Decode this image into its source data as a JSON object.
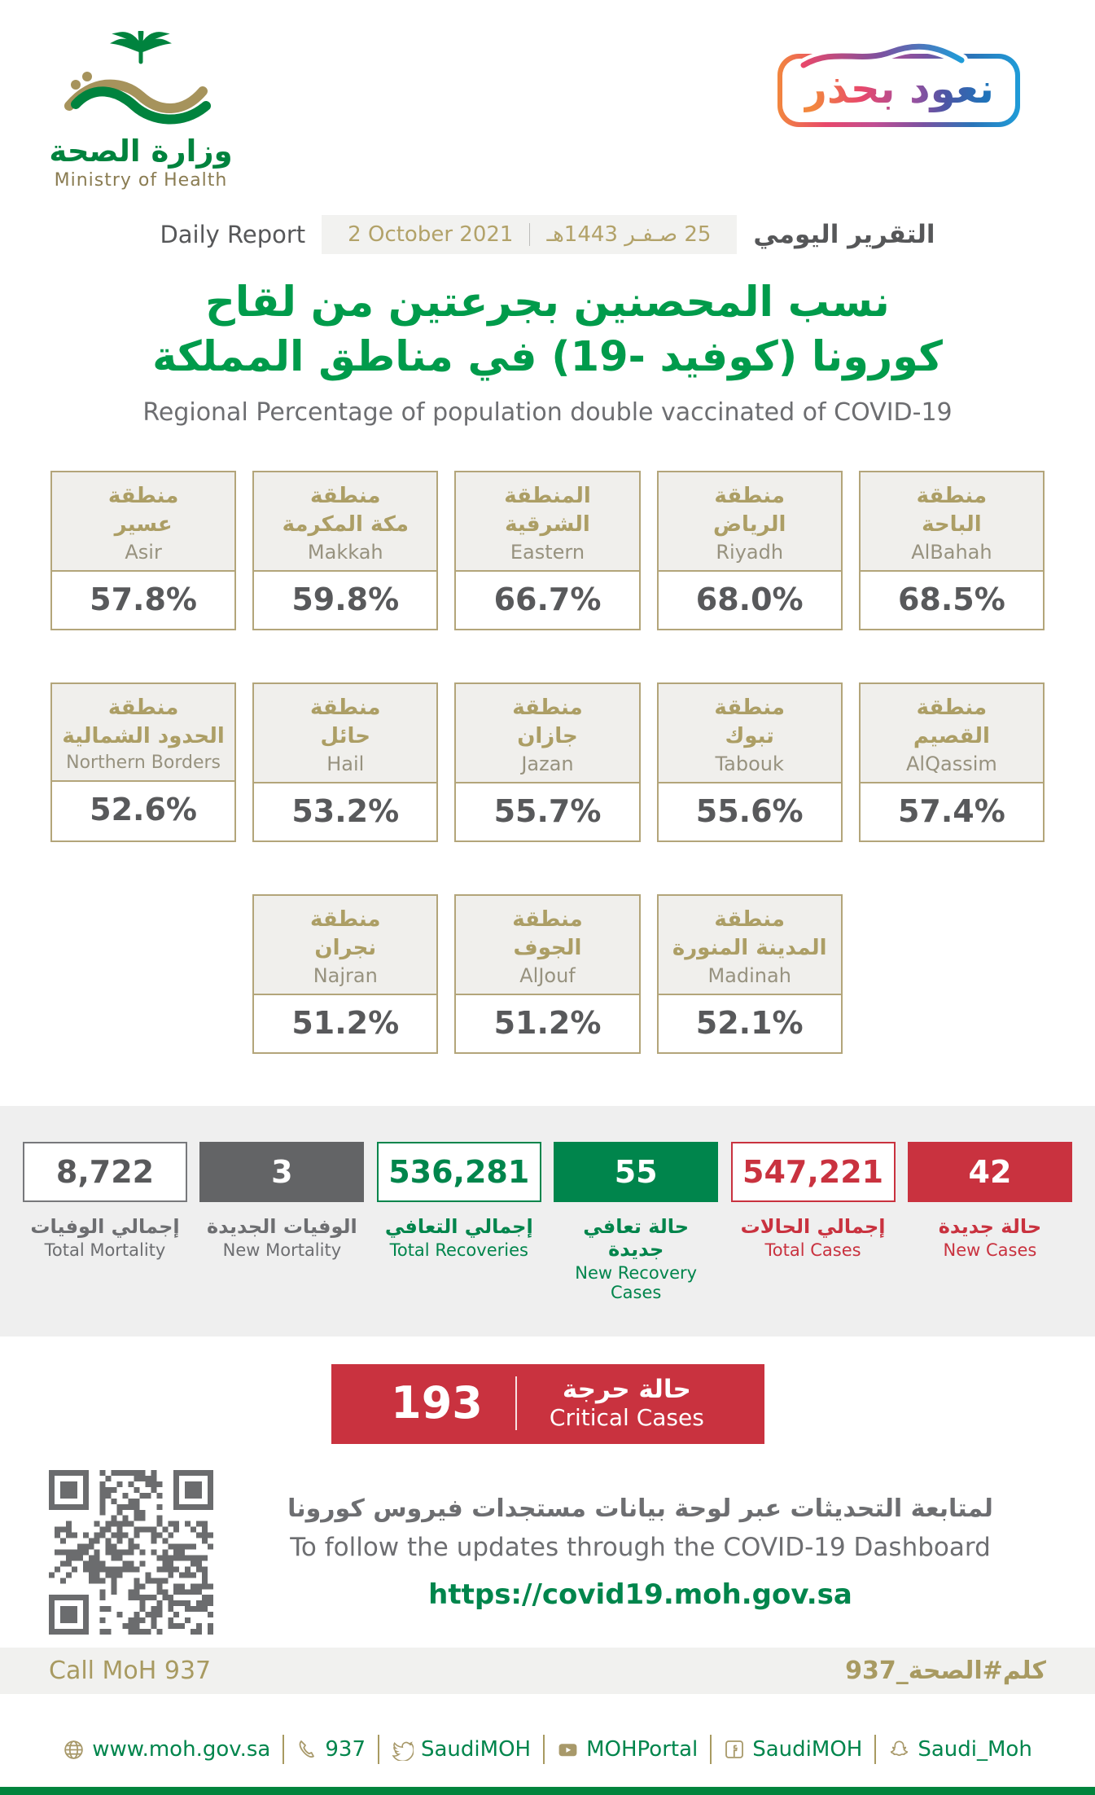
{
  "header": {
    "logo": {
      "arabic": "وزارة الصحة",
      "english": "Ministry of Health"
    },
    "badge": {
      "text": "نعود بحذر"
    },
    "report": {
      "label_en": "Daily Report",
      "date_gregorian": "2 October 2021",
      "date_hijri": "25 صـفـر 1443هـ",
      "label_ar": "التقرير اليومي"
    }
  },
  "title": {
    "ar_line1": "نسب المحصنين بجرعتين من لقاح",
    "ar_line2": "كورونا (كوفيد -19) في مناطق المملكة",
    "en": "Regional Percentage of population double vaccinated of COVID-19"
  },
  "regions": {
    "row1": [
      {
        "ar": "منطقة\nعسير",
        "en": "Asir",
        "value": "57.8%"
      },
      {
        "ar": "منطقة\nمكة المكرمة",
        "en": "Makkah",
        "value": "59.8%"
      },
      {
        "ar": "المنطقة\nالشرقية",
        "en": "Eastern",
        "value": "66.7%"
      },
      {
        "ar": "منطقة\nالرياض",
        "en": "Riyadh",
        "value": "68.0%"
      },
      {
        "ar": "منطقة\nالباحة",
        "en": "AlBahah",
        "value": "68.5%"
      }
    ],
    "row2": [
      {
        "ar": "منطقة\nالحدود الشمالية",
        "en": "Northern Borders",
        "value": "52.6%"
      },
      {
        "ar": "منطقة\nحائل",
        "en": "Hail",
        "value": "53.2%"
      },
      {
        "ar": "منطقة\nجازان",
        "en": "Jazan",
        "value": "55.7%"
      },
      {
        "ar": "منطقة\nتبوك",
        "en": "Tabouk",
        "value": "55.6%"
      },
      {
        "ar": "منطقة\nالقصيم",
        "en": "AlQassim",
        "value": "57.4%"
      }
    ],
    "row3": [
      {
        "ar": "منطقة\nنجران",
        "en": "Najran",
        "value": "51.2%"
      },
      {
        "ar": "منطقة\nالجوف",
        "en": "AlJouf",
        "value": "51.2%"
      },
      {
        "ar": "منطقة\nالمدينة المنورة",
        "en": "Madinah",
        "value": "52.1%"
      }
    ]
  },
  "stats": [
    {
      "value": "8,722",
      "ar": "إجمالي الوفيات",
      "en": "Total Mortality"
    },
    {
      "value": "3",
      "ar": "الوفيات الجديدة",
      "en": "New Mortality"
    },
    {
      "value": "536,281",
      "ar": "إجمالي التعافي",
      "en": "Total Recoveries"
    },
    {
      "value": "55",
      "ar": "حالة تعافي جديدة",
      "en": "New Recovery Cases"
    },
    {
      "value": "547,221",
      "ar": "إجمالي الحالات",
      "en": "Total Cases"
    },
    {
      "value": "42",
      "ar": "حالة جديدة",
      "en": "New Cases"
    }
  ],
  "critical": {
    "value": "193",
    "ar": "حالة حرجة",
    "en": "Critical Cases"
  },
  "dashboard": {
    "ar": "لمتابعة التحديثات عبر لوحة بيانات مستجدات فيروس كورونا",
    "en": "To follow the updates through the COVID-19 Dashboard",
    "url": "https://covid19.moh.gov.sa"
  },
  "callband": {
    "left": "Call MoH 937",
    "right": "كلم#الصحة_937"
  },
  "footer": {
    "items": [
      {
        "icon": "globe-icon",
        "label": "www.moh.gov.sa"
      },
      {
        "icon": "phone-icon",
        "label": "937"
      },
      {
        "icon": "twitter-icon",
        "label": "SaudiMOH"
      },
      {
        "icon": "youtube-icon",
        "label": "MOHPortal"
      },
      {
        "icon": "facebook-icon",
        "label": "SaudiMOH"
      },
      {
        "icon": "snapchat-icon",
        "label": "Saudi_Moh"
      }
    ]
  },
  "colors": {
    "brand_green": "#00843D",
    "brand_gold": "#A89A61",
    "alert_red": "#C9323F",
    "dark_gray": "#58595B",
    "label_gray": "#6D6E71",
    "band_gray": "#EFEFEF"
  }
}
